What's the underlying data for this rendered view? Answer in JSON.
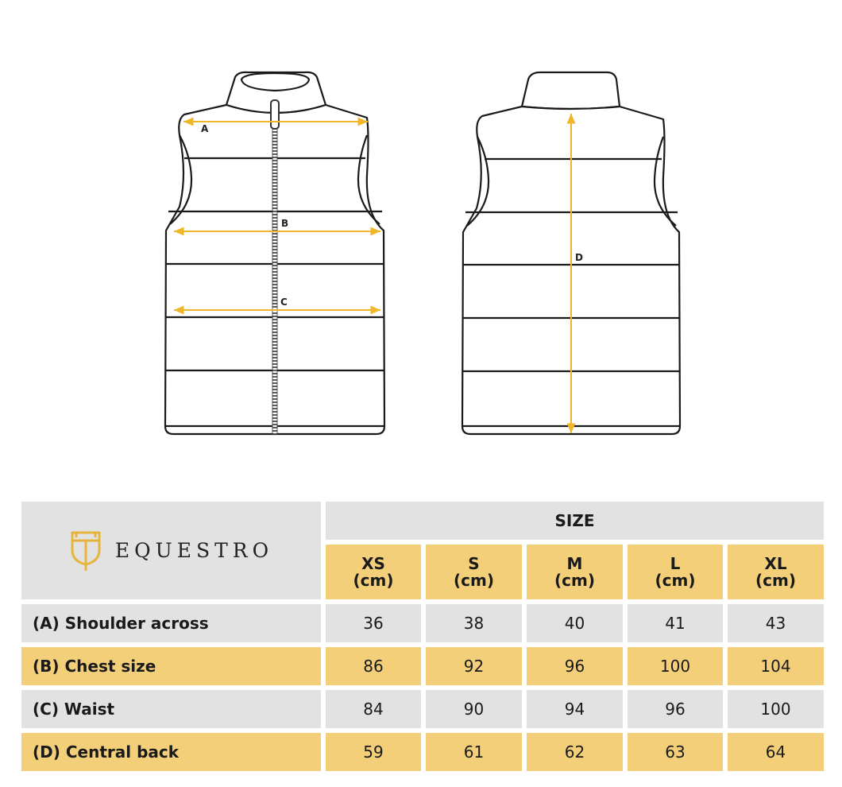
{
  "brand": {
    "name": "EQUESTRO",
    "logo_icon": "shield-crest-icon",
    "accent_color": "#f0b629"
  },
  "diagram": {
    "front_labels": [
      "A",
      "B",
      "C"
    ],
    "back_labels": [
      "D"
    ]
  },
  "size_table": {
    "header": "SIZE",
    "columns": [
      {
        "size": "XS",
        "unit": "(cm)"
      },
      {
        "size": "S",
        "unit": "(cm)"
      },
      {
        "size": "M",
        "unit": "(cm)"
      },
      {
        "size": "L",
        "unit": "(cm)"
      },
      {
        "size": "XL",
        "unit": "(cm)"
      }
    ],
    "rows": [
      {
        "label": "(A) Shoulder across",
        "values": [
          "36",
          "38",
          "40",
          "41",
          "43"
        ]
      },
      {
        "label": "(B) Chest size",
        "values": [
          "86",
          "92",
          "96",
          "100",
          "104"
        ]
      },
      {
        "label": "(C) Waist",
        "values": [
          "84",
          "90",
          "94",
          "96",
          "100"
        ]
      },
      {
        "label": "(D) Central back",
        "values": [
          "59",
          "61",
          "62",
          "63",
          "64"
        ]
      }
    ]
  },
  "colors": {
    "gray_cell": "#e2e2e2",
    "gold_cell": "#f3cf7a",
    "measure_line": "#f0b629"
  }
}
